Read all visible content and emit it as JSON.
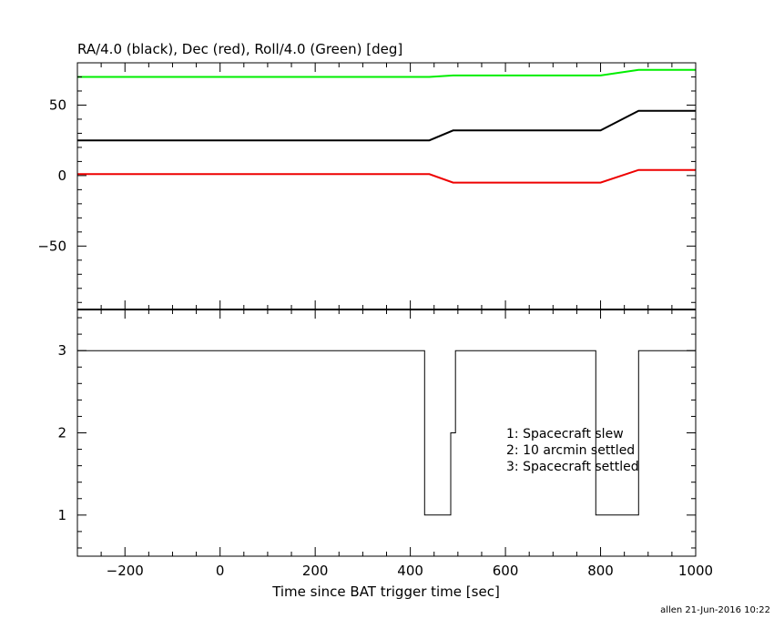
{
  "chart_data": [
    {
      "type": "line",
      "title": "RA/4.0 (black), Dec (red), Roll/4.0 (Green) [deg]",
      "xlim": [
        -300,
        1000
      ],
      "ylim": [
        -95,
        80
      ],
      "yticks": [
        -50,
        0,
        50
      ],
      "ytick_labels": [
        "−50",
        "0",
        "50"
      ],
      "series": [
        {
          "color": "#00ee00",
          "x": [
            -300,
            340,
            440,
            490,
            800,
            880,
            1000
          ],
          "y": [
            70,
            70,
            70,
            71,
            71,
            75,
            75
          ]
        },
        {
          "color": "#000000",
          "x": [
            -300,
            340,
            440,
            490,
            800,
            880,
            1000
          ],
          "y": [
            25,
            25,
            25,
            32,
            32,
            46,
            46
          ]
        },
        {
          "color": "#ee0000",
          "x": [
            -300,
            340,
            440,
            490,
            800,
            880,
            1000
          ],
          "y": [
            1,
            1,
            1,
            -5,
            -5,
            4,
            4
          ]
        }
      ]
    },
    {
      "type": "line",
      "xlabel": "Time since BAT trigger time [sec]",
      "xlim": [
        -300,
        1000
      ],
      "ylim": [
        0.5,
        3.5
      ],
      "xticks": [
        -200,
        0,
        200,
        400,
        600,
        800,
        1000
      ],
      "xtick_labels": [
        "−200",
        "0",
        "200",
        "400",
        "600",
        "800",
        "1000"
      ],
      "yticks": [
        1,
        2,
        3
      ],
      "ytick_labels": [
        "1",
        "2",
        "3"
      ],
      "step_series": {
        "color": "#000000",
        "x": [
          -300,
          430,
          430,
          485,
          485,
          495,
          495,
          790,
          790,
          880,
          880,
          1000
        ],
        "y": [
          3,
          3,
          1,
          1,
          2,
          2,
          3,
          3,
          1,
          1,
          3,
          3
        ]
      },
      "annotations": [
        "1: Spacecraft slew",
        "2: 10 arcmin settled",
        "3: Spacecraft settled"
      ]
    }
  ],
  "footer": "allen 21-Jun-2016 10:22"
}
